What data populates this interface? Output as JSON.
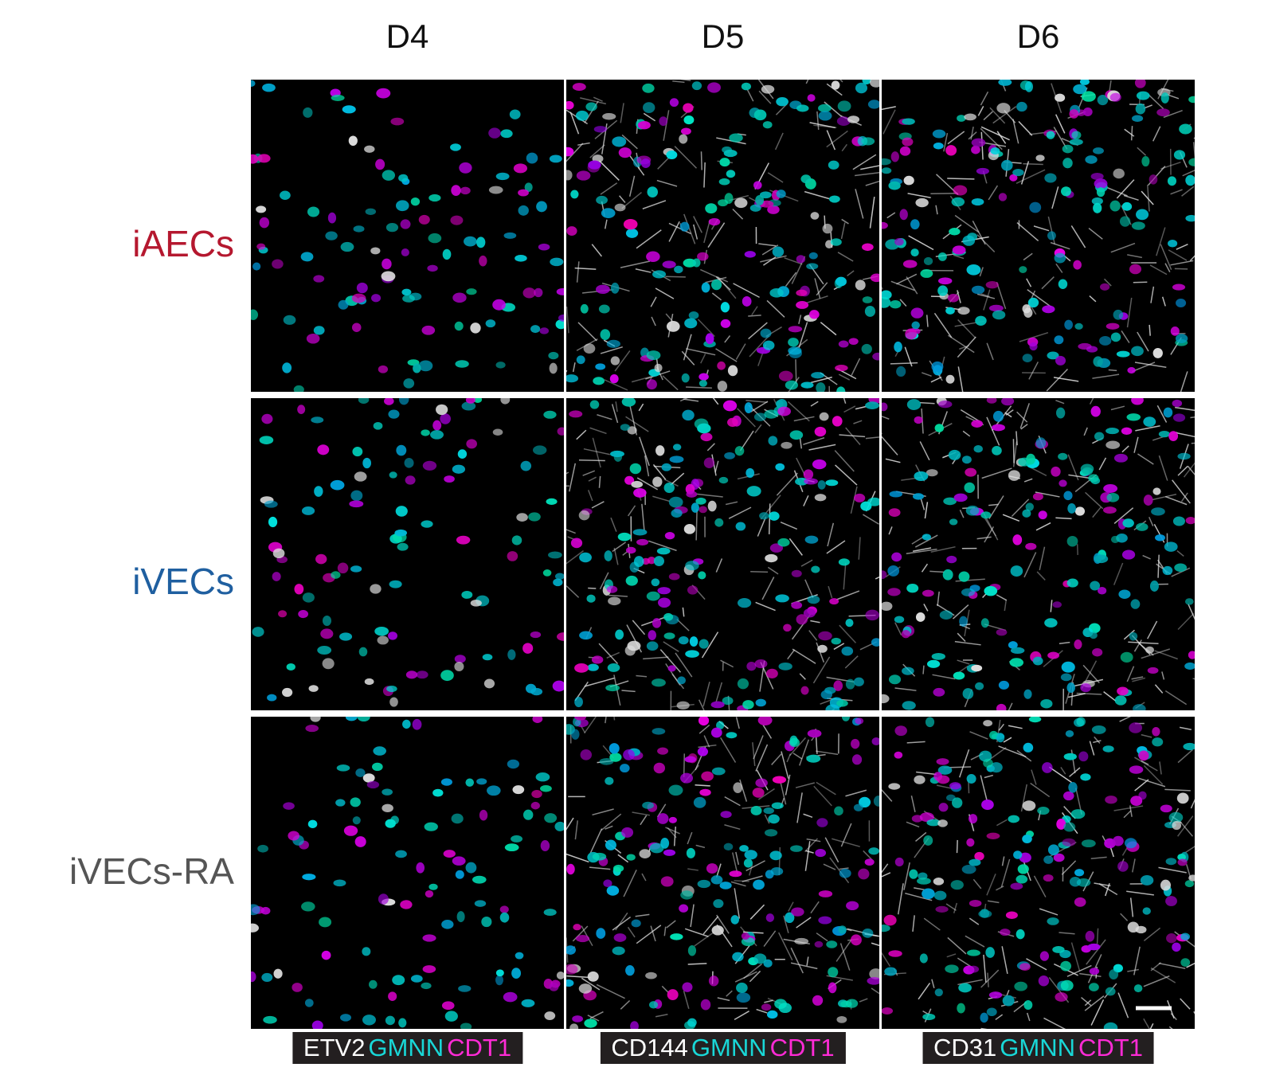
{
  "columns": [
    "D4",
    "D5",
    "D6"
  ],
  "rows": [
    "iAECs",
    "iVECs",
    "iVECs-RA"
  ],
  "legends": [
    [
      "ETV2",
      "GMNN",
      "CDT1"
    ],
    [
      "CD144",
      "GMNN",
      "CDT1"
    ],
    [
      "CD31",
      "GMNN",
      "CDT1"
    ]
  ]
}
